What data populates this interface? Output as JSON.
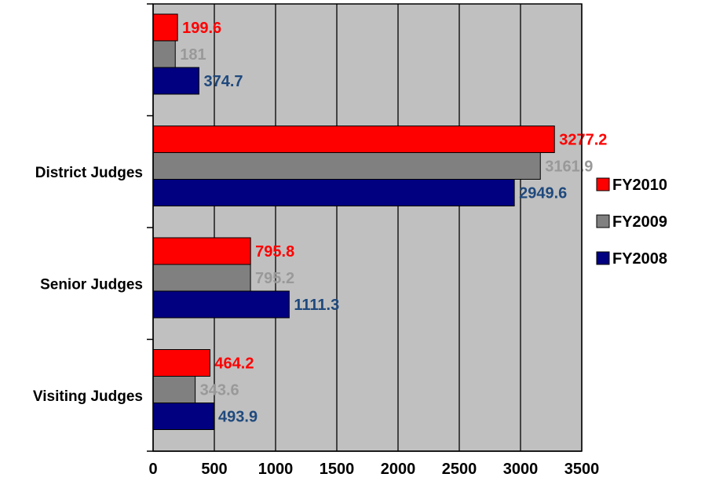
{
  "chart_data": {
    "type": "bar",
    "orientation": "horizontal",
    "title": "",
    "xlabel": "",
    "ylabel": "",
    "categories": [
      "",
      "District Judges",
      "Senior Judges",
      "Visiting Judges"
    ],
    "series": [
      {
        "name": "FY2010",
        "color": "#ff0000",
        "label_color": "#ff0000",
        "values": [
          199.6,
          3277.2,
          795.8,
          464.2
        ]
      },
      {
        "name": "FY2009",
        "color": "#808080",
        "label_color": "#999999",
        "values": [
          181,
          3161.9,
          795.2,
          343.6
        ]
      },
      {
        "name": "FY2008",
        "color": "#000080",
        "label_color": "#1f497d",
        "values": [
          374.7,
          2949.6,
          1111.3,
          493.9
        ]
      }
    ],
    "xlim": [
      0,
      3500
    ],
    "xticks": [
      0,
      500,
      1000,
      1500,
      2000,
      2500,
      3000,
      3500
    ],
    "grid": true,
    "plot_background": "#c0c0c0",
    "legend_position": "right",
    "legend_order": [
      "FY2010",
      "FY2009",
      "FY2008"
    ]
  }
}
